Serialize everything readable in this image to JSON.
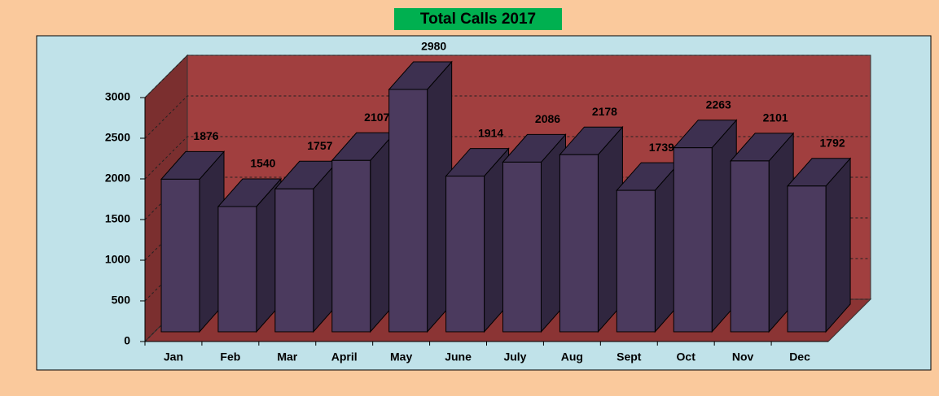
{
  "chart_data": {
    "type": "bar3d",
    "title": "Total Calls 2017",
    "categories": [
      "Jan",
      "Feb",
      "Mar",
      "April",
      "May",
      "June",
      "July",
      "Aug",
      "Sept",
      "Oct",
      "Nov",
      "Dec"
    ],
    "values": [
      1876,
      1540,
      1757,
      2107,
      2980,
      1914,
      2086,
      2178,
      1739,
      2263,
      2101,
      1792
    ],
    "color": "#4b3a5e",
    "ylim": [
      0,
      3000
    ],
    "yticks": [
      0,
      500,
      1000,
      1500,
      2000,
      2500,
      3000
    ],
    "grid": true
  }
}
